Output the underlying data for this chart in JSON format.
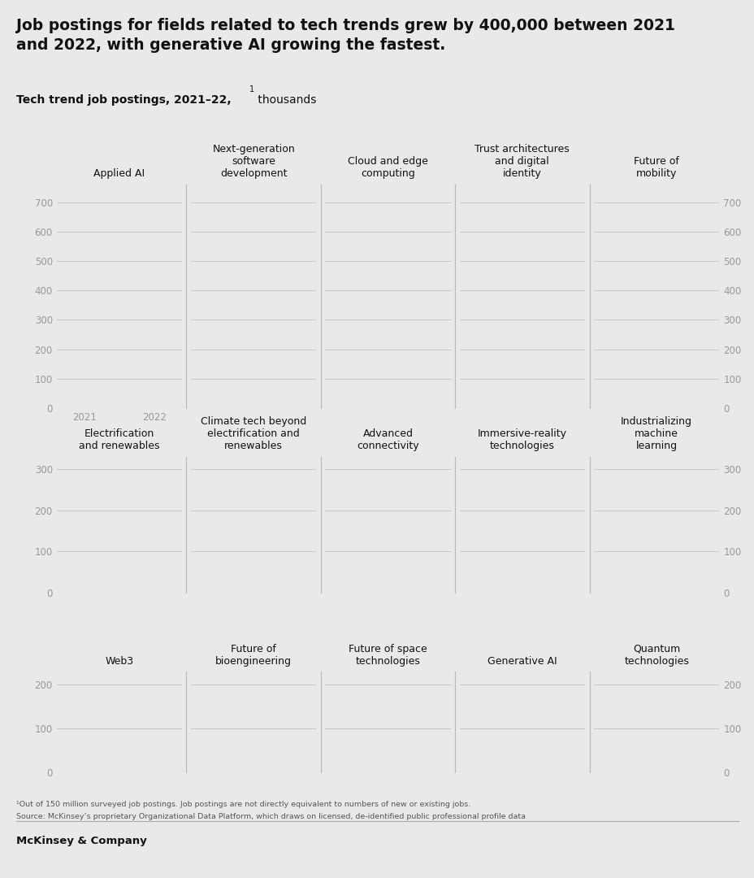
{
  "title_line1": "Job postings for fields related to tech trends grew by 400,000 between 2021",
  "title_line2": "and 2022, with generative AI growing the fastest.",
  "subtitle_bold": "Tech trend job postings, 2021–22,",
  "subtitle_super": "1",
  "subtitle_normal": " thousands",
  "background_color": "#e9e9e9",
  "footnote1": "¹Out of 150 million surveyed job postings. Job postings are not directly equivalent to numbers of new or existing jobs.",
  "footnote2": "Source: McKinsey’s proprietary Organizational Data Platform, which draws on licensed, de-identified public professional profile data",
  "footer": "McKinsey & Company",
  "row1_titles": [
    "Applied AI",
    "Next-generation\nsoftware\ndevelopment",
    "Cloud and edge\ncomputing",
    "Trust architectures\nand digital\nidentity",
    "Future of\nmobility"
  ],
  "row1_yticks": [
    0,
    100,
    200,
    300,
    400,
    500,
    600,
    700
  ],
  "row1_ylim": [
    0,
    760
  ],
  "row2_titles": [
    "Electrification\nand renewables",
    "Climate tech beyond\nelectrification and\nrenewables",
    "Advanced\nconnectivity",
    "Immersive-reality\ntechnologies",
    "Industrializing\nmachine\nlearning"
  ],
  "row2_yticks": [
    0,
    100,
    200,
    300
  ],
  "row2_ylim": [
    0,
    330
  ],
  "row3_titles": [
    "Web3",
    "Future of\nbioengineering",
    "Future of space\ntechnologies",
    "Generative AI",
    "Quantum\ntechnologies"
  ],
  "row3_yticks": [
    0,
    100,
    200
  ],
  "row3_ylim": [
    0,
    230
  ],
  "grid_color": "#c8c8c8",
  "axis_label_color": "#999999",
  "title_color": "#111111",
  "separator_color": "#bbbbbb",
  "tick_label_size": 8.5,
  "chart_title_size": 9,
  "subtitle_size": 10
}
